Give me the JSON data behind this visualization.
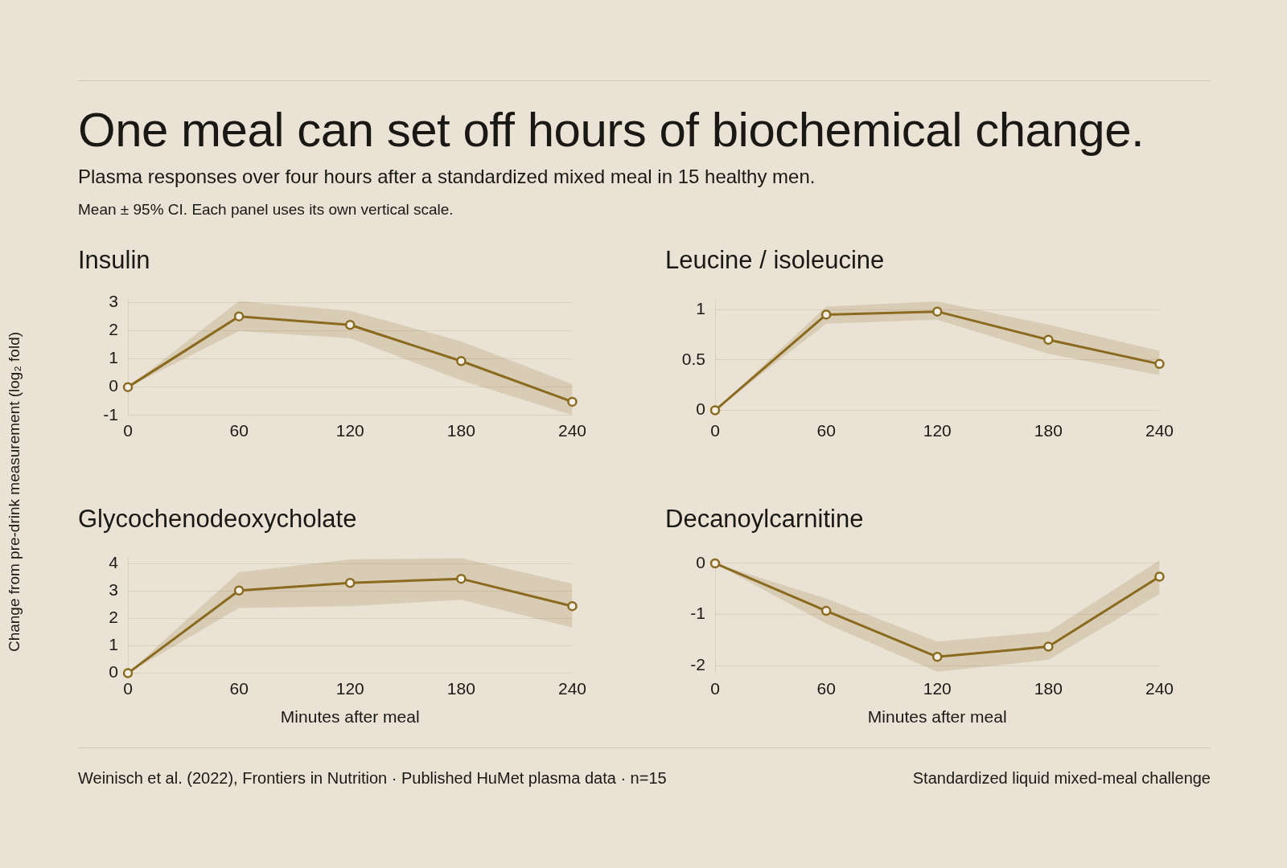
{
  "chart_data": [
    {
      "type": "other",
      "title": "One meal can set off hours of biochemical change.",
      "subtitle": "Plasma responses over four hours after a standardized mixed meal in 15 healthy men.",
      "annotations": [
        "Mean ± 95% CI. Each panel uses its own vertical scale."
      ]
    },
    {
      "type": "line",
      "title": "Insulin",
      "ylabel": "Change from pre-drink measurement (log₂ fold)",
      "x": [
        0,
        60,
        120,
        180,
        240
      ],
      "xlim": [
        0,
        240
      ],
      "xticks": [
        0,
        60,
        120,
        180,
        240
      ],
      "ylim": [
        -1,
        3.1
      ],
      "yticks": [
        -1,
        0,
        1,
        2,
        3
      ],
      "grid": "y",
      "marker": "circle",
      "line_style": "solid",
      "series": [
        {
          "color": "#8a6a1f",
          "values": [
            0,
            2.5,
            2.2,
            0.92,
            -0.52
          ],
          "lower": [
            0,
            1.98,
            1.73,
            0.24,
            -0.99
          ],
          "upper": [
            0,
            3.04,
            2.7,
            1.62,
            0.1
          ]
        }
      ]
    },
    {
      "type": "line",
      "title": "Leucine / isoleucine",
      "x": [
        0,
        60,
        120,
        180,
        240
      ],
      "xlim": [
        0,
        240
      ],
      "xticks": [
        0,
        60,
        120,
        180,
        240
      ],
      "ylim": [
        -0.05,
        1.1
      ],
      "yticks": [
        0,
        0.5,
        1
      ],
      "grid": "y",
      "marker": "circle",
      "line_style": "solid",
      "series": [
        {
          "color": "#8a6a1f",
          "values": [
            0,
            0.95,
            0.98,
            0.7,
            0.46
          ],
          "lower": [
            0,
            0.86,
            0.9,
            0.56,
            0.35
          ],
          "upper": [
            0,
            1.03,
            1.08,
            0.85,
            0.59
          ]
        }
      ]
    },
    {
      "type": "line",
      "title": "Glycochenodeoxycholate",
      "xlabel": "Minutes after meal",
      "x": [
        0,
        60,
        120,
        180,
        240
      ],
      "xlim": [
        0,
        240
      ],
      "xticks": [
        0,
        60,
        120,
        180,
        240
      ],
      "ylim": [
        0,
        4.2
      ],
      "yticks": [
        0,
        1,
        2,
        3,
        4
      ],
      "grid": "y",
      "marker": "circle",
      "line_style": "solid",
      "series": [
        {
          "color": "#8a6a1f",
          "values": [
            0,
            3.02,
            3.3,
            3.45,
            2.45
          ],
          "lower": [
            0,
            2.38,
            2.45,
            2.68,
            1.67
          ],
          "upper": [
            0,
            3.69,
            4.16,
            4.2,
            3.27
          ]
        }
      ]
    },
    {
      "type": "line",
      "title": "Decanoylcarnitine",
      "xlabel": "Minutes after meal",
      "x": [
        0,
        60,
        120,
        180,
        240
      ],
      "xlim": [
        0,
        240
      ],
      "xticks": [
        0,
        60,
        120,
        180,
        240
      ],
      "ylim": [
        -2.15,
        0.1
      ],
      "yticks": [
        -2,
        -1,
        0
      ],
      "grid": "y",
      "marker": "circle",
      "line_style": "solid",
      "series": [
        {
          "color": "#8a6a1f",
          "values": [
            0,
            -0.93,
            -1.83,
            -1.63,
            -0.26
          ],
          "lower": [
            0,
            -1.18,
            -2.12,
            -1.89,
            -0.6
          ],
          "upper": [
            0,
            -0.69,
            -1.53,
            -1.34,
            0.06
          ]
        }
      ]
    },
    {
      "type": "other",
      "annotations": [
        "Weinisch et al. (2022), Frontiers in Nutrition · Published HuMet plasma data · n=15",
        "Standardized liquid mixed-meal challenge"
      ]
    }
  ]
}
